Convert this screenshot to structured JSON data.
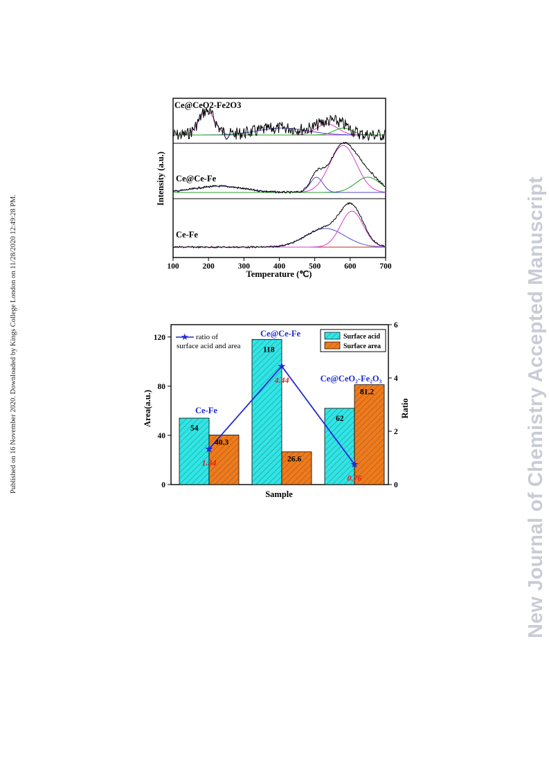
{
  "side_text": "Published on 16 November 2020. Downloaded by Kings College London on 11/28/2020 12:49:28 PM.",
  "watermark": "New Journal of Chemistry Accepted Manuscript",
  "colors": {
    "surface_acid": "#2ee6e6",
    "surface_area": "#f07a1a",
    "ratio_line": "#1f2ad6",
    "ratio_label": "#e02020",
    "curve_pink": "#d63cc8",
    "curve_blue": "#4a4ac8",
    "curve_green": "#22a022",
    "baseline_red": "#cc2222"
  },
  "chart_data": [
    {
      "type": "line",
      "xlabel": "Temperature (℃)",
      "ylabel": "Intensity (a.u.)",
      "xlim": [
        100,
        700
      ],
      "xticks": [
        "100",
        "200",
        "300",
        "400",
        "500",
        "600",
        "700"
      ],
      "series": [
        {
          "name": "Ce@CeO2-Fe2O3",
          "peaks": [
            195,
            410,
            535,
            580
          ]
        },
        {
          "name": "Ce@Ce-Fe",
          "peaks": [
            230,
            505,
            580,
            650
          ]
        },
        {
          "name": "Ce-Fe",
          "peaks": [
            530,
            605
          ]
        }
      ]
    },
    {
      "type": "bar",
      "xlabel": "Sample",
      "ylabel": "Area(a.u.)",
      "y2label": "Ratio",
      "ylim": [
        0,
        130
      ],
      "y2lim": [
        0,
        6
      ],
      "yticks": [
        "0",
        "40",
        "80",
        "120"
      ],
      "y2ticks": [
        "0",
        "2",
        "4",
        "6"
      ],
      "categories": [
        "Ce-Fe",
        "Ce@Ce-Fe",
        "Ce@CeO₂-Fe₂O₃"
      ],
      "series": [
        {
          "name": "Surface acid",
          "values": [
            54,
            118,
            62
          ]
        },
        {
          "name": "Surface area",
          "values": [
            40.3,
            26.6,
            81.2
          ]
        },
        {
          "name": "ratio of surface acid and area",
          "axis": "right",
          "values": [
            1.34,
            4.44,
            0.76
          ]
        }
      ],
      "value_labels": [
        "54",
        "40.3",
        "118",
        "26.6",
        "62",
        "81.2"
      ],
      "ratio_labels": [
        "1.34",
        "4.44",
        "0.76"
      ],
      "legend": {
        "line": "ratio of",
        "line2": "surface acid and area",
        "bar1": "Surface acid",
        "bar2": "Surface area"
      }
    }
  ]
}
